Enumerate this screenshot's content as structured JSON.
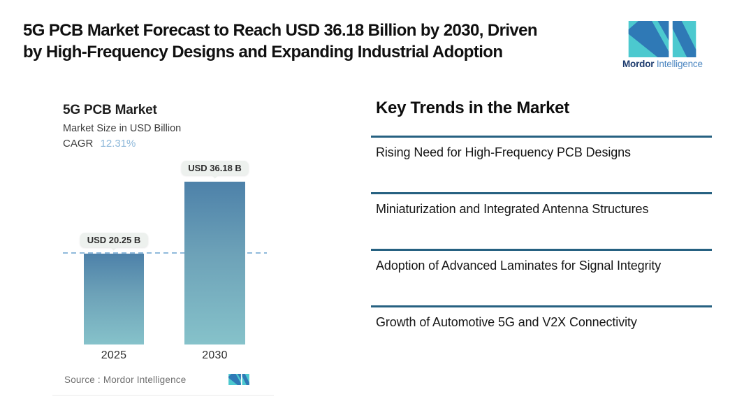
{
  "page": {
    "title_line1": "5G PCB Market Forecast to Reach USD 36.18 Billion by 2030, Driven",
    "title_line2": "by High-Frequency Designs and Expanding Industrial Adoption"
  },
  "brand": {
    "name_primary": "Mordor",
    "name_secondary": "Intelligence",
    "logo_icon": "mordor-intelligence-m-mark",
    "logo_blue": "#2f79b6",
    "logo_teal": "#4cc9cf",
    "text_dark_blue": "#1c3a6d",
    "text_light_blue": "#4d87c1"
  },
  "chart_data": {
    "type": "bar",
    "title": "5G PCB Market",
    "subtitle": "Market Size in USD Billion",
    "cagr_label": "CAGR",
    "cagr_value": "12.31%",
    "categories": [
      "2025",
      "2030"
    ],
    "values": [
      20.25,
      36.18
    ],
    "value_labels": [
      "USD 20.25 B",
      "USD 36.18 B"
    ],
    "unit": "USD Billion",
    "ylim": [
      0,
      40
    ],
    "grid": false,
    "legend": "none",
    "reference_line_value": 20.25,
    "reference_line_style": "dashed",
    "reference_line_color": "#90badb",
    "bar_gradient_top": "#4d81a9",
    "bar_gradient_bottom": "#86c2ca",
    "source_label": "Source :  Mordor Intelligence"
  },
  "trends": {
    "heading": "Key Trends in the Market",
    "divider_color": "#266181",
    "items": [
      "Rising Need for High-Frequency PCB Designs",
      "Miniaturization and Integrated Antenna Structures",
      "Adoption of Advanced Laminates for Signal Integrity",
      "Growth of Automotive 5G and V2X Connectivity"
    ]
  }
}
